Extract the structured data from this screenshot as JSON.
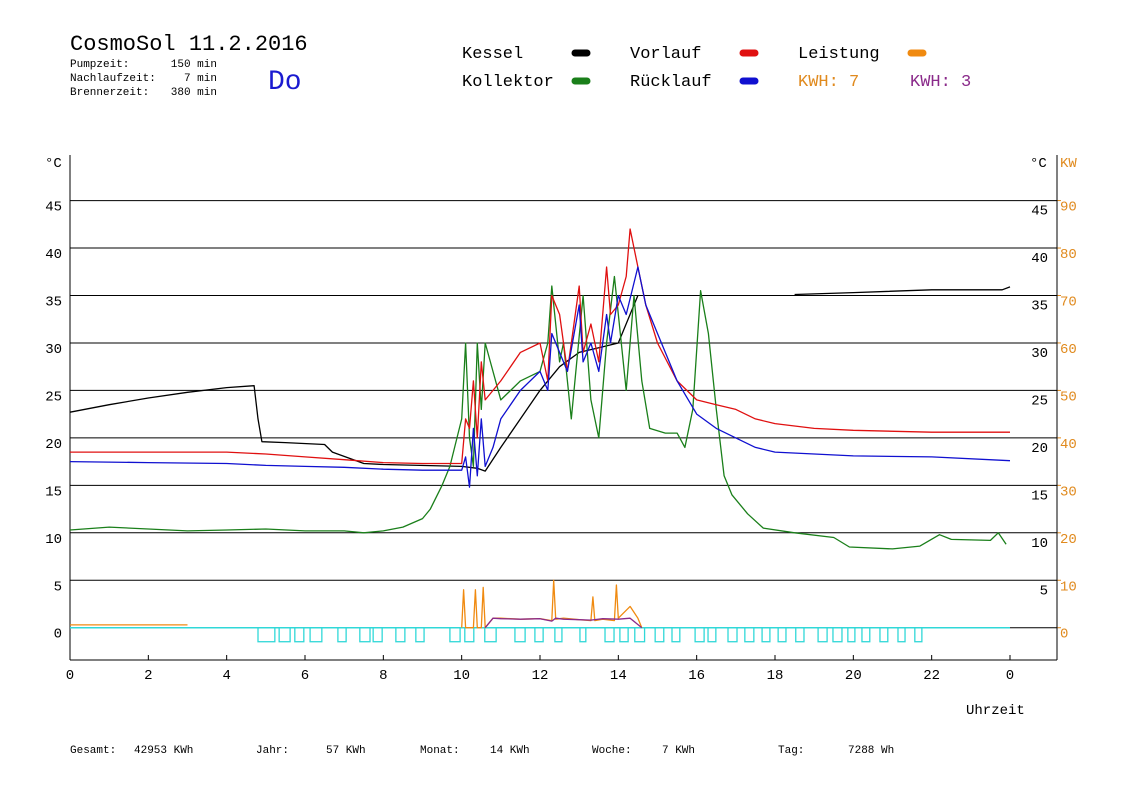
{
  "chart_data": {
    "type": "line",
    "title": "CosmoSol 11.2.2016",
    "stats": [
      {
        "label": "Pumpzeit:",
        "value": "150 min"
      },
      {
        "label": "Nachlaufzeit:",
        "value": "7 min"
      },
      {
        "label": "Brennerzeit:",
        "value": "380 min"
      }
    ],
    "day": "Do",
    "y_label": "°C",
    "y2_label": "KW",
    "x_label": "Uhrzeit",
    "kwh_labels": [
      {
        "text": "KWH: 7",
        "color": "#e08a1e"
      },
      {
        "text": "KWH: 3",
        "color": "#8a2a8a"
      }
    ],
    "xlim": [
      0,
      25.2
    ],
    "xticks": [
      0,
      2,
      4,
      6,
      8,
      10,
      12,
      14,
      16,
      18,
      20,
      22,
      {
        "value": 24,
        "label": "0"
      }
    ],
    "ylim": [
      -3.4,
      49.8
    ],
    "yticks": [
      0,
      5,
      10,
      15,
      20,
      25,
      30,
      35,
      40,
      45
    ],
    "y_right_ticks": [
      5,
      10,
      15,
      20,
      25,
      30,
      35,
      40,
      45
    ],
    "y2lim": [
      -6.8,
      99.6
    ],
    "y2ticks": [
      0,
      10,
      20,
      30,
      40,
      50,
      60,
      70,
      80,
      90
    ],
    "grid": true,
    "series": [
      {
        "name": "Kessel",
        "color": "#000000",
        "x": [
          0,
          1,
          2,
          3,
          4,
          4.7,
          4.8,
          4.9,
          5.5,
          6.5,
          6.7,
          7.5,
          8,
          10,
          10.4,
          10.6,
          11,
          11.5,
          12,
          12.5,
          13,
          13.5,
          14,
          14.5,
          14.7,
          18.5,
          20,
          22,
          23.8,
          24
        ],
        "values": [
          22.7,
          23.5,
          24.2,
          24.8,
          25.3,
          25.5,
          22,
          19.6,
          19.5,
          19.3,
          18.5,
          17.3,
          17.2,
          17.0,
          16.8,
          16.5,
          19,
          22,
          25,
          27.5,
          29,
          29.5,
          30,
          35,
          null,
          35.1,
          35.3,
          35.6,
          35.6,
          35.9
        ]
      },
      {
        "name": "Kollektor",
        "color": "#1a7f1a",
        "x": [
          0,
          1,
          2,
          3,
          4,
          5,
          6,
          7,
          7.5,
          8,
          8.5,
          9,
          9.2,
          9.5,
          9.7,
          10,
          10.1,
          10.2,
          10.3,
          10.4,
          10.5,
          10.6,
          11,
          11.5,
          12,
          12.2,
          12.3,
          12.5,
          12.6,
          12.8,
          13.1,
          13.3,
          13.5,
          13.7,
          13.9,
          14.2,
          14.4,
          14.6,
          14.8,
          15.2,
          15.5,
          15.7,
          15.9,
          16.1,
          16.3,
          16.5,
          16.7,
          16.9,
          17.3,
          17.7,
          18.5,
          19.5,
          19.9,
          21,
          21.7,
          22.2,
          22.5,
          23.5,
          23.7,
          23.9
        ],
        "values": [
          10.3,
          10.6,
          10.4,
          10.2,
          10.3,
          10.4,
          10.2,
          10.2,
          10.0,
          10.2,
          10.6,
          11.5,
          12.5,
          15,
          17,
          22,
          30,
          20,
          17,
          30,
          23,
          30,
          24,
          26,
          27,
          30,
          36,
          28,
          30,
          22,
          35,
          24,
          20,
          30,
          37,
          25,
          35,
          26,
          21,
          20.5,
          20.5,
          19,
          23,
          35.5,
          31,
          23,
          16,
          14,
          12,
          10.5,
          10,
          9.5,
          8.5,
          8.3,
          8.6,
          9.8,
          9.3,
          9.2,
          10,
          8.8
        ]
      },
      {
        "name": "Vorlauf",
        "color": "#e01010",
        "x": [
          0,
          2,
          4,
          5,
          6,
          7,
          8,
          9,
          10,
          10.1,
          10.2,
          10.3,
          10.4,
          10.5,
          10.6,
          10.8,
          11,
          11.5,
          12,
          12.2,
          12.3,
          12.5,
          12.7,
          13,
          13.1,
          13.3,
          13.5,
          13.7,
          13.8,
          14,
          14.2,
          14.3,
          14.5,
          14.7,
          15,
          15.5,
          16,
          16.5,
          17,
          17.5,
          18,
          19,
          20,
          22,
          24
        ],
        "values": [
          18.5,
          18.5,
          18.5,
          18.3,
          18.0,
          17.7,
          17.4,
          17.3,
          17.3,
          22,
          21,
          26,
          20,
          28,
          24,
          25,
          26,
          29,
          30,
          26,
          35,
          33,
          27,
          36,
          29,
          32,
          28,
          38,
          33,
          34,
          37,
          42,
          38,
          34,
          30,
          26,
          24,
          23.5,
          23,
          22,
          21.5,
          21,
          20.8,
          20.6,
          20.6
        ]
      },
      {
        "name": "Rücklauf",
        "color": "#1010d0",
        "x": [
          0,
          2,
          4,
          5,
          6,
          7,
          8,
          9,
          10,
          10.1,
          10.2,
          10.3,
          10.4,
          10.5,
          10.6,
          10.8,
          11,
          11.5,
          12,
          12.2,
          12.3,
          12.5,
          12.7,
          13,
          13.1,
          13.3,
          13.5,
          13.7,
          13.8,
          14,
          14.2,
          14.5,
          14.7,
          15,
          15.5,
          16,
          16.5,
          17,
          17.5,
          18,
          19,
          20,
          22,
          24
        ],
        "values": [
          17.5,
          17.4,
          17.3,
          17.1,
          17.0,
          16.9,
          16.7,
          16.6,
          16.6,
          18,
          14.8,
          21,
          16,
          22,
          17,
          19,
          22,
          25,
          27,
          25,
          31,
          29,
          27,
          34,
          28,
          30,
          27,
          33,
          30,
          35,
          33,
          38,
          34,
          31,
          26,
          22.5,
          21,
          20,
          19,
          18.5,
          18.3,
          18.1,
          18,
          17.6
        ]
      },
      {
        "name": "Leistung",
        "color": "#f08a10",
        "axis": "y2",
        "x": [
          0,
          3,
          3.01,
          10,
          10.05,
          10.1,
          10.3,
          10.35,
          10.4,
          10.5,
          10.55,
          10.6,
          10.8,
          11,
          11.5,
          12,
          12.3,
          12.35,
          12.4,
          12.6,
          13,
          13.3,
          13.35,
          13.4,
          13.6,
          13.9,
          13.95,
          14,
          14.3,
          14.5,
          14.6
        ],
        "values": [
          0.6,
          0.6,
          null,
          0,
          8,
          0,
          0,
          8,
          0,
          0,
          8.5,
          0,
          2,
          2,
          1.8,
          1.9,
          1.5,
          10,
          1.8,
          2,
          1.7,
          1.5,
          6.5,
          1.5,
          1.8,
          1.5,
          9,
          2,
          4.5,
          2,
          0
        ]
      },
      {
        "color": "#8a2a8a",
        "axis": "y2",
        "x": [
          10.6,
          10.8,
          11,
          11.5,
          12,
          12.3,
          12.4,
          12.6,
          13,
          13.3,
          13.6,
          14,
          14.3,
          14.6
        ],
        "values": [
          0,
          2,
          1.9,
          1.8,
          1.9,
          1.4,
          2,
          1.8,
          1.7,
          1.6,
          1.9,
          1.8,
          2,
          0
        ]
      }
    ],
    "pump_intervals": [
      [
        4.8,
        5.23
      ],
      [
        5.34,
        5.62
      ],
      [
        5.74,
        5.97
      ],
      [
        6.13,
        6.43
      ],
      [
        6.84,
        7.05
      ],
      [
        7.4,
        7.66
      ],
      [
        7.74,
        7.97
      ],
      [
        8.32,
        8.55
      ],
      [
        8.83,
        9.04
      ],
      [
        9.7,
        9.96
      ],
      [
        10.08,
        10.31
      ],
      [
        10.59,
        10.88
      ],
      [
        11.36,
        11.62
      ],
      [
        11.87,
        12.08
      ],
      [
        12.38,
        12.56
      ],
      [
        13.02,
        13.17
      ],
      [
        13.66,
        13.89
      ],
      [
        14.04,
        14.25
      ],
      [
        14.42,
        14.67
      ],
      [
        14.94,
        15.16
      ],
      [
        15.37,
        15.57
      ],
      [
        15.96,
        16.19
      ],
      [
        16.29,
        16.49
      ],
      [
        16.8,
        17.03
      ],
      [
        17.23,
        17.46
      ],
      [
        17.67,
        17.87
      ],
      [
        18.08,
        18.28
      ],
      [
        18.53,
        18.74
      ],
      [
        19.1,
        19.33
      ],
      [
        19.48,
        19.71
      ],
      [
        19.86,
        20.04
      ],
      [
        20.22,
        20.42
      ],
      [
        20.68,
        20.88
      ],
      [
        21.14,
        21.32
      ],
      [
        21.57,
        21.75
      ]
    ],
    "footer": [
      {
        "label": "Gesamt:",
        "value": "42953 KWh"
      },
      {
        "label": "Jahr:",
        "value": "57 KWh"
      },
      {
        "label": "Monat:",
        "value": "14 KWh"
      },
      {
        "label": "Woche:",
        "value": "7 KWh"
      },
      {
        "label": "Tag:",
        "value": "7288 Wh"
      }
    ]
  }
}
